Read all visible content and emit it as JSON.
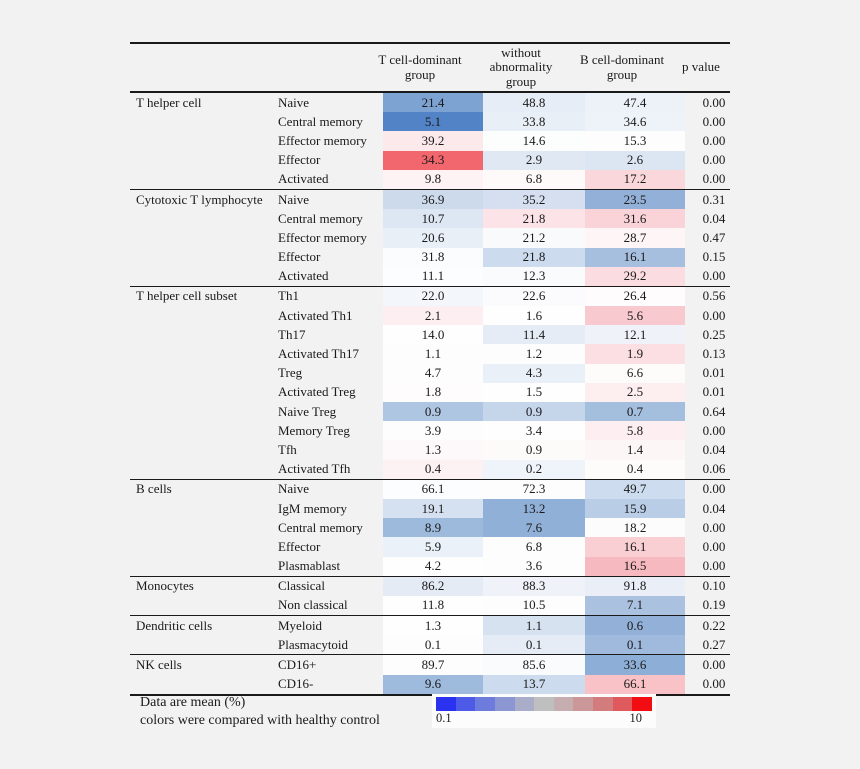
{
  "chart_data": {
    "type": "heatmap",
    "title": "",
    "columns": [
      "T cell-dominant group",
      "without abnormality group",
      "B cell-dominant group",
      "p value"
    ],
    "value_unit": "mean (%)",
    "legend": {
      "min": "0.1",
      "max": "10",
      "colors": [
        "#2b32ef",
        "#4e5ae8",
        "#6d7bdd",
        "#8b96d3",
        "#a9adc9",
        "#bfbfc0",
        "#c6aeb0",
        "#cc9799",
        "#d37c7e",
        "#de5a5c",
        "#f20d12"
      ]
    },
    "sections": [
      {
        "group": "T helper cell",
        "rows": [
          {
            "label": "Naive",
            "values": [
              "21.4",
              "48.8",
              "47.4"
            ],
            "colors": [
              "#7da3d3",
              "#e7edf6",
              "#edf1f8"
            ],
            "p": "0.00"
          },
          {
            "label": "Central memory",
            "values": [
              "5.1",
              "33.8",
              "34.6"
            ],
            "colors": [
              "#5283c6",
              "#e9eff7",
              "#eef2f9"
            ],
            "p": "0.00"
          },
          {
            "label": "Effector memory",
            "values": [
              "39.2",
              "14.6",
              "15.3"
            ],
            "colors": [
              "#fce9ec",
              "#fcfdfd",
              "#fdfdfe"
            ],
            "p": "0.00"
          },
          {
            "label": "Effector",
            "values": [
              "34.3",
              "2.9",
              "2.6"
            ],
            "colors": [
              "#f2666d",
              "#dfe8f3",
              "#dce6f2"
            ],
            "p": "0.00"
          },
          {
            "label": "Activated",
            "values": [
              "9.8",
              "6.8",
              "17.2"
            ],
            "colors": [
              "#fdf3f4",
              "#fefafa",
              "#f9d7db"
            ],
            "p": "0.00"
          }
        ]
      },
      {
        "group": "Cytotoxic T lymphocyte",
        "rows": [
          {
            "label": "Naive",
            "values": [
              "36.9",
              "35.2",
              "23.5"
            ],
            "colors": [
              "#ccdaec",
              "#d5dfef",
              "#93b1d8"
            ],
            "p": "0.31"
          },
          {
            "label": "Central memory",
            "values": [
              "10.7",
              "21.8",
              "31.6"
            ],
            "colors": [
              "#dde7f3",
              "#fce3e7",
              "#f9d3d8"
            ],
            "p": "0.04"
          },
          {
            "label": "Effector memory",
            "values": [
              "20.6",
              "21.2",
              "28.7"
            ],
            "colors": [
              "#e9eff7",
              "#f8fafc",
              "#fdf5f6"
            ],
            "p": "0.47"
          },
          {
            "label": "Effector",
            "values": [
              "31.8",
              "21.8",
              "16.1"
            ],
            "colors": [
              "#fbfcfe",
              "#cddbee",
              "#a7bfdf"
            ],
            "p": "0.15"
          },
          {
            "label": "Activated",
            "values": [
              "11.1",
              "12.3",
              "29.2"
            ],
            "colors": [
              "#fcfdfe",
              "#fafbfd",
              "#fbdce1"
            ],
            "p": "0.00"
          }
        ]
      },
      {
        "group": "T helper cell subset",
        "rows": [
          {
            "label": "Th1",
            "values": [
              "22.0",
              "22.6",
              "26.4"
            ],
            "colors": [
              "#f3f6fa",
              "#fbfbfd",
              "#fefcfc"
            ],
            "p": "0.56"
          },
          {
            "label": "Activated Th1",
            "values": [
              "2.1",
              "1.6",
              "5.6"
            ],
            "colors": [
              "#fdeff1",
              "#fefefe",
              "#f8c9ce"
            ],
            "p": "0.00"
          },
          {
            "label": "Th17",
            "values": [
              "14.0",
              "11.4",
              "12.1"
            ],
            "colors": [
              "#fefefe",
              "#e5ecf5",
              "#eff3f9"
            ],
            "p": "0.25"
          },
          {
            "label": "Activated Th17",
            "values": [
              "1.1",
              "1.2",
              "1.9"
            ],
            "colors": [
              "#fefdfd",
              "#fdfdfe",
              "#fcdfe3"
            ],
            "p": "0.13"
          },
          {
            "label": "Treg",
            "values": [
              "4.7",
              "4.3",
              "6.6"
            ],
            "colors": [
              "#fdfdfe",
              "#eaf0f7",
              "#fefbfb"
            ],
            "p": "0.01"
          },
          {
            "label": "Activated Treg",
            "values": [
              "1.8",
              "1.5",
              "2.5"
            ],
            "colors": [
              "#fefcfc",
              "#fefefe",
              "#fdeef0"
            ],
            "p": "0.01"
          },
          {
            "label": "Naive Treg",
            "values": [
              "0.9",
              "0.9",
              "0.7"
            ],
            "colors": [
              "#afc6e3",
              "#c5d5ea",
              "#a4bede"
            ],
            "p": "0.64"
          },
          {
            "label": "Memory Treg",
            "values": [
              "3.9",
              "3.4",
              "5.8"
            ],
            "colors": [
              "#fefdfd",
              "#fefefe",
              "#fdeff1"
            ],
            "p": "0.00"
          },
          {
            "label": "Tfh",
            "values": [
              "1.3",
              "0.9",
              "1.4"
            ],
            "colors": [
              "#fdf8f9",
              "#fdfafa",
              "#fdf6f7"
            ],
            "p": "0.04"
          },
          {
            "label": "Activated Tfh",
            "values": [
              "0.4",
              "0.2",
              "0.4"
            ],
            "colors": [
              "#fdf2f3",
              "#eff4fa",
              "#fefbfb"
            ],
            "p": "0.06"
          }
        ]
      },
      {
        "group": "B cells",
        "rows": [
          {
            "label": "Naive",
            "values": [
              "66.1",
              "72.3",
              "49.7"
            ],
            "colors": [
              "#fcfdfe",
              "#fdfdfe",
              "#cddcee"
            ],
            "p": "0.00"
          },
          {
            "label": "IgM memory",
            "values": [
              "19.1",
              "13.2",
              "15.9"
            ],
            "colors": [
              "#d5e0f0",
              "#90b0d7",
              "#bacde7"
            ],
            "p": "0.04"
          },
          {
            "label": "Central memory",
            "values": [
              "8.9",
              "7.6",
              "18.2"
            ],
            "colors": [
              "#9db9dc",
              "#90b0d7",
              "#fcfcfd"
            ],
            "p": "0.00"
          },
          {
            "label": "Effector",
            "values": [
              "5.9",
              "6.8",
              "16.1"
            ],
            "colors": [
              "#ebf1f8",
              "#fdfdfe",
              "#f9cfd4"
            ],
            "p": "0.00"
          },
          {
            "label": "Plasmablast",
            "values": [
              "4.2",
              "3.6",
              "16.5"
            ],
            "colors": [
              "#fefefe",
              "#fdfdfd",
              "#f6b9bf"
            ],
            "p": "0.00"
          }
        ]
      },
      {
        "group": "Monocytes",
        "rows": [
          {
            "label": "Classical",
            "values": [
              "86.2",
              "88.3",
              "91.8"
            ],
            "colors": [
              "#e4ebf5",
              "#eff3f9",
              "#e9eef7"
            ],
            "p": "0.10"
          },
          {
            "label": "Non classical",
            "values": [
              "11.8",
              "10.5",
              "7.1"
            ],
            "colors": [
              "#fefefe",
              "#fdfdfe",
              "#aac1e0"
            ],
            "p": "0.19"
          }
        ]
      },
      {
        "group": "Dendritic cells",
        "rows": [
          {
            "label": "Myeloid",
            "values": [
              "1.3",
              "1.1",
              "0.6"
            ],
            "colors": [
              "#fefefe",
              "#d7e2f1",
              "#93b1d8"
            ],
            "p": "0.22"
          },
          {
            "label": "Plasmacytoid",
            "values": [
              "0.1",
              "0.1",
              "0.1"
            ],
            "colors": [
              "#fdfdfe",
              "#e5ecf6",
              "#a0bade"
            ],
            "p": "0.27"
          }
        ]
      },
      {
        "group": "NK cells",
        "rows": [
          {
            "label": "CD16+",
            "values": [
              "89.7",
              "85.6",
              "33.6"
            ],
            "colors": [
              "#fdfdfe",
              "#fafbfd",
              "#8daed6"
            ],
            "p": "0.00"
          },
          {
            "label": "CD16-",
            "values": [
              "9.6",
              "13.7",
              "66.1"
            ],
            "colors": [
              "#9ebadd",
              "#cddbee",
              "#f8c2c7"
            ],
            "p": "0.00"
          }
        ]
      }
    ],
    "notes": [
      "Data are mean (%)",
      "colors were compared with healthy control"
    ]
  },
  "header": {
    "col3": "T cell-dominant group",
    "col4": "without abnormality group",
    "col5": "B cell-dominant group",
    "col6": "p value"
  },
  "footer": {
    "line1": "Data are mean (%)",
    "line2": "colors were compared with healthy control"
  },
  "legend": {
    "min_label": "0.1",
    "max_label": "10"
  }
}
